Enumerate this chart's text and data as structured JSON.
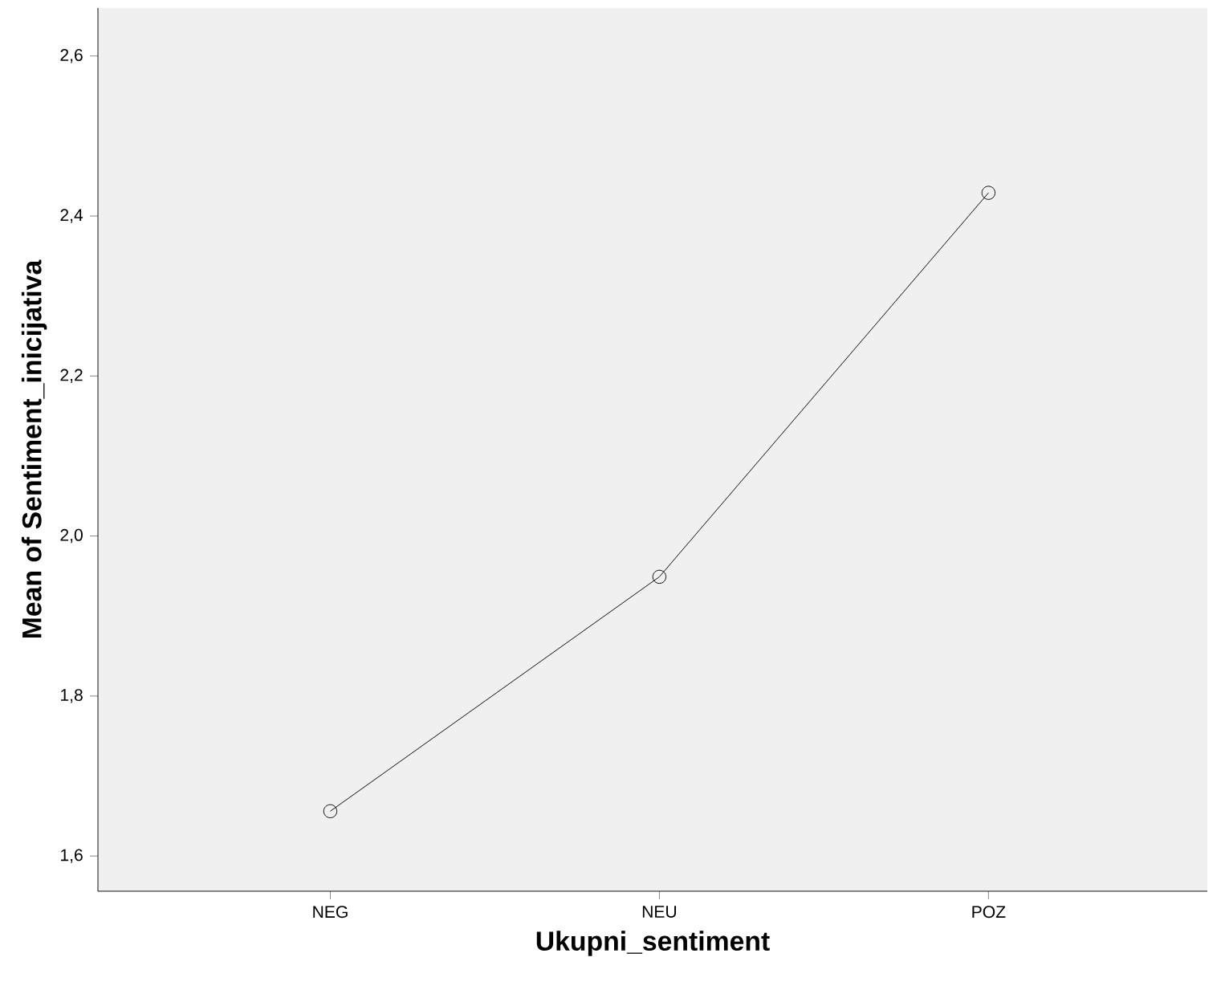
{
  "chart_data": {
    "type": "line",
    "xlabel": "Ukupni_sentiment",
    "ylabel": "Mean of Sentiment_inicijativa",
    "categories": [
      "NEG",
      "NEU",
      "POZ"
    ],
    "values": [
      1.656,
      1.949,
      2.429
    ],
    "color": "#000000",
    "marker": "circle",
    "line_style": "solid",
    "ylim": [
      1.556,
      2.66
    ],
    "yticks": [
      {
        "value": 1.6,
        "label": "1,6"
      },
      {
        "value": 1.8,
        "label": "1,8"
      },
      {
        "value": 2.0,
        "label": "2,0"
      },
      {
        "value": 2.2,
        "label": "2,2"
      },
      {
        "value": 2.4,
        "label": "2,4"
      },
      {
        "value": 2.6,
        "label": "2,6"
      }
    ],
    "grid": false
  }
}
